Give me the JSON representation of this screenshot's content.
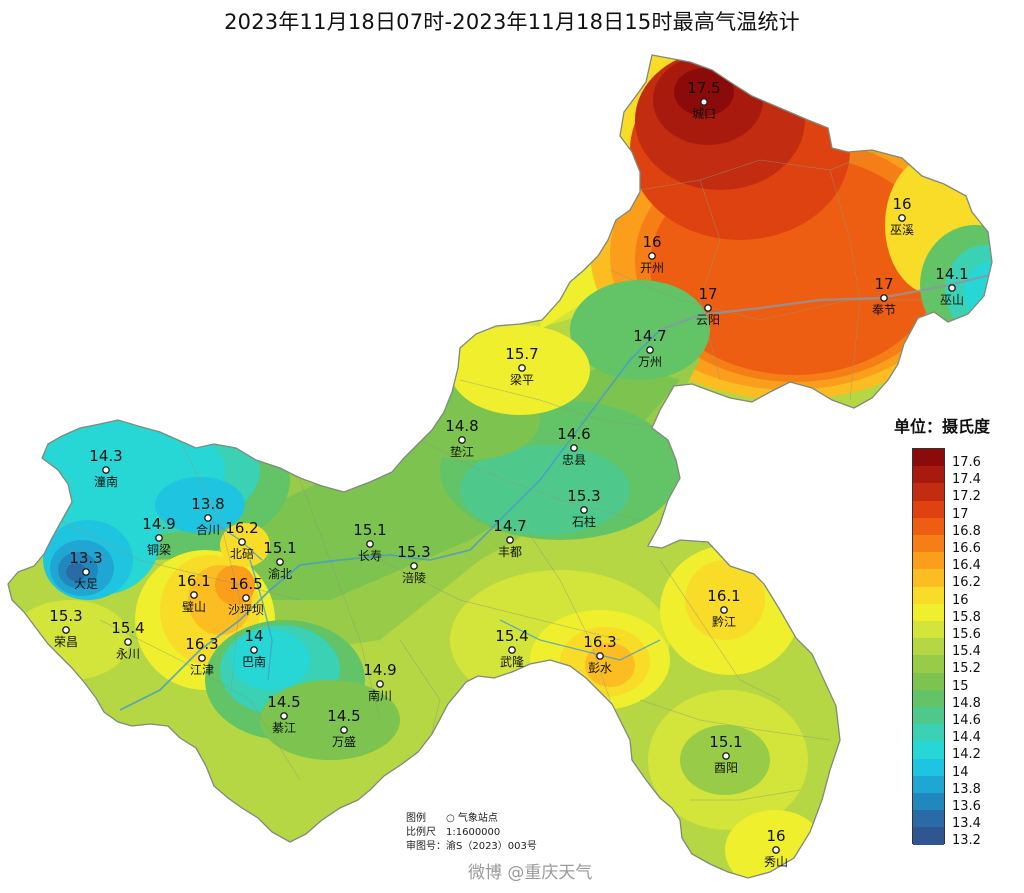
{
  "title": "2023年11月18日07时-2023年11月18日15时最高气温统计",
  "legend": {
    "title": "单位：摄氏度",
    "items": [
      {
        "label": "17.6",
        "color": "#8b0a0a"
      },
      {
        "label": "17.4",
        "color": "#a81a0e"
      },
      {
        "label": "17.2",
        "color": "#c22c10"
      },
      {
        "label": "17",
        "color": "#de4210"
      },
      {
        "label": "16.8",
        "color": "#ee5e12"
      },
      {
        "label": "16.6",
        "color": "#f57f16"
      },
      {
        "label": "16.4",
        "color": "#fa9e1c"
      },
      {
        "label": "16.2",
        "color": "#fbbd22"
      },
      {
        "label": "16",
        "color": "#f8dc28"
      },
      {
        "label": "15.8",
        "color": "#efef2e"
      },
      {
        "label": "15.6",
        "color": "#d3e43a"
      },
      {
        "label": "15.4",
        "color": "#b6d744"
      },
      {
        "label": "15.2",
        "color": "#98cc48"
      },
      {
        "label": "15",
        "color": "#7cc34f"
      },
      {
        "label": "14.8",
        "color": "#62c466"
      },
      {
        "label": "14.6",
        "color": "#4ec98b"
      },
      {
        "label": "14.4",
        "color": "#3ad1b4"
      },
      {
        "label": "14.2",
        "color": "#27d7d6"
      },
      {
        "label": "14",
        "color": "#1fc4e1"
      },
      {
        "label": "13.8",
        "color": "#1fa6d2"
      },
      {
        "label": "13.6",
        "color": "#2088bd"
      },
      {
        "label": "13.4",
        "color": "#2a6aa6"
      },
      {
        "label": "13.2",
        "color": "#2f5690"
      }
    ]
  },
  "stations": [
    {
      "name": "城口",
      "value": "17.5"
    },
    {
      "name": "巫溪",
      "value": "16"
    },
    {
      "name": "开州",
      "value": "16"
    },
    {
      "name": "云阳",
      "value": "17"
    },
    {
      "name": "奉节",
      "value": "17"
    },
    {
      "name": "巫山",
      "value": "14.1"
    },
    {
      "name": "万州",
      "value": "14.7"
    },
    {
      "name": "梁平",
      "value": "15.7"
    },
    {
      "name": "垫江",
      "value": "14.8"
    },
    {
      "name": "忠县",
      "value": "14.6"
    },
    {
      "name": "石柱",
      "value": "15.3"
    },
    {
      "name": "丰都",
      "value": "14.7"
    },
    {
      "name": "长寿",
      "value": "15.1"
    },
    {
      "name": "涪陵",
      "value": "15.3"
    },
    {
      "name": "潼南",
      "value": "14.3"
    },
    {
      "name": "合川",
      "value": "13.8"
    },
    {
      "name": "铜梁",
      "value": "14.9"
    },
    {
      "name": "北碚",
      "value": "16.2"
    },
    {
      "name": "渝北",
      "value": "15.1"
    },
    {
      "name": "大足",
      "value": "13.3"
    },
    {
      "name": "璧山",
      "value": "16.1"
    },
    {
      "name": "沙坪坝",
      "value": "16.5"
    },
    {
      "name": "荣昌",
      "value": "15.3"
    },
    {
      "name": "永川",
      "value": "15.4"
    },
    {
      "name": "江津",
      "value": "16.3"
    },
    {
      "name": "巴南",
      "value": "14"
    },
    {
      "name": "綦江",
      "value": "14.5"
    },
    {
      "name": "万盛",
      "value": "14.5"
    },
    {
      "name": "南川",
      "value": "14.9"
    },
    {
      "name": "武隆",
      "value": "15.4"
    },
    {
      "name": "彭水",
      "value": "16.3"
    },
    {
      "name": "黔江",
      "value": "16.1"
    },
    {
      "name": "酉阳",
      "value": "15.1"
    },
    {
      "name": "秀山",
      "value": "16"
    }
  ],
  "notes": {
    "legend_label": "图例",
    "legend_value": "○  气象站点",
    "scale_label": "比例尺",
    "scale_value": "1:1600000",
    "approval_label": "审图号：",
    "approval_value": "渝S（2023）003号"
  },
  "watermark": "微博 @重庆天气"
}
